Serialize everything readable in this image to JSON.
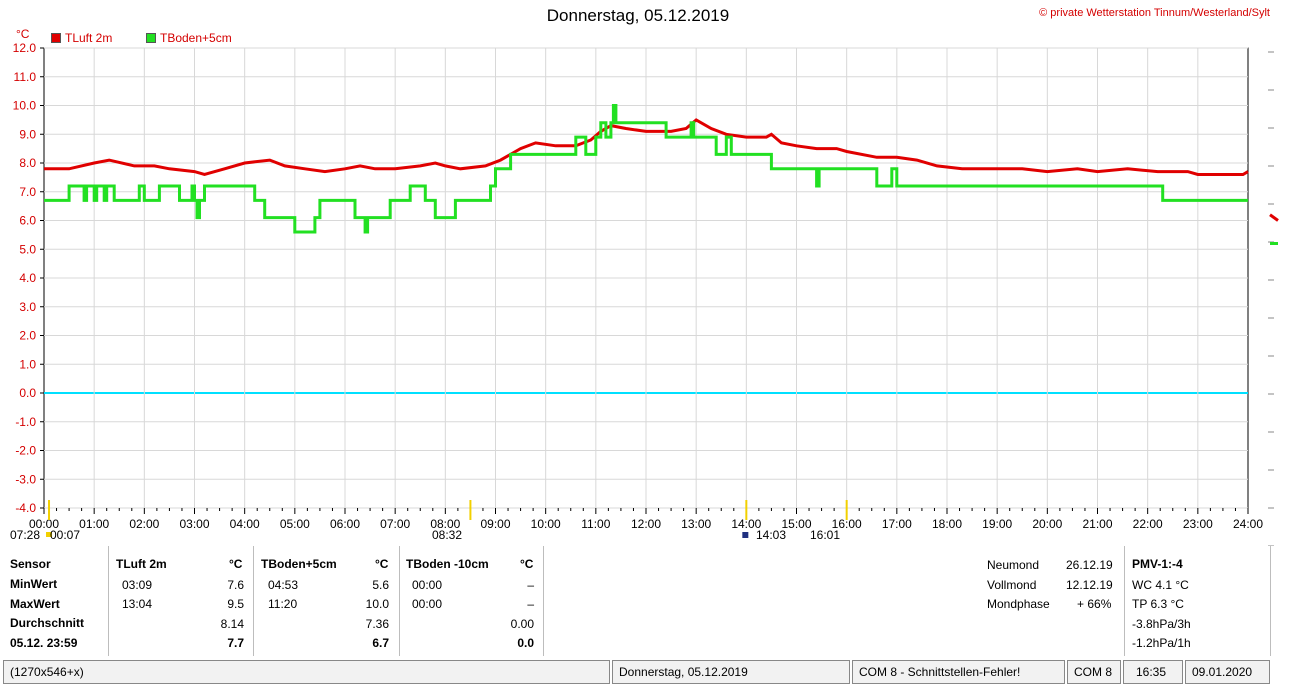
{
  "window": {
    "title": "Donnerstag, 05.12.2019",
    "credit": "© private Wetterstation Tinnum/Westerland/Sylt"
  },
  "chart_data": {
    "type": "line",
    "unit_label": "°C",
    "ylim": [
      -4.0,
      12.0
    ],
    "y_ticks": [
      "12.0",
      "11.0",
      "10.0",
      "9.0",
      "8.0",
      "7.0",
      "6.0",
      "5.0",
      "4.0",
      "3.0",
      "2.0",
      "1.0",
      "0.0",
      "-1.0",
      "-2.0",
      "-3.0",
      "-4.0"
    ],
    "x_ticks": [
      "00:00",
      "01:00",
      "02:00",
      "03:00",
      "04:00",
      "05:00",
      "06:00",
      "07:00",
      "08:00",
      "09:00",
      "10:00",
      "11:00",
      "12:00",
      "13:00",
      "14:00",
      "15:00",
      "16:00",
      "17:00",
      "18:00",
      "19:00",
      "20:00",
      "21:00",
      "22:00",
      "23:00",
      "24:00"
    ],
    "xlim_hours": [
      0,
      24
    ],
    "grid": true,
    "zero_line_color": "#00e0ff",
    "series": [
      {
        "name": "TLuft 2m",
        "color": "#e00000",
        "points": [
          [
            0,
            7.8
          ],
          [
            0.5,
            7.8
          ],
          [
            1.0,
            8.0
          ],
          [
            1.3,
            8.1
          ],
          [
            1.8,
            7.9
          ],
          [
            2.2,
            7.9
          ],
          [
            2.5,
            7.8
          ],
          [
            3.0,
            7.7
          ],
          [
            3.2,
            7.6
          ],
          [
            3.6,
            7.8
          ],
          [
            4.0,
            8.0
          ],
          [
            4.5,
            8.1
          ],
          [
            4.8,
            7.9
          ],
          [
            5.2,
            7.8
          ],
          [
            5.6,
            7.7
          ],
          [
            6.0,
            7.8
          ],
          [
            6.3,
            7.9
          ],
          [
            6.6,
            7.8
          ],
          [
            7.0,
            7.8
          ],
          [
            7.5,
            7.9
          ],
          [
            7.8,
            8.0
          ],
          [
            8.0,
            7.9
          ],
          [
            8.3,
            7.8
          ],
          [
            8.8,
            7.9
          ],
          [
            9.1,
            8.1
          ],
          [
            9.5,
            8.5
          ],
          [
            9.8,
            8.7
          ],
          [
            10.2,
            8.6
          ],
          [
            10.6,
            8.6
          ],
          [
            10.9,
            8.8
          ],
          [
            11.1,
            9.1
          ],
          [
            11.3,
            9.3
          ],
          [
            11.6,
            9.2
          ],
          [
            12.0,
            9.1
          ],
          [
            12.5,
            9.1
          ],
          [
            12.8,
            9.2
          ],
          [
            13.0,
            9.5
          ],
          [
            13.3,
            9.2
          ],
          [
            13.6,
            9.0
          ],
          [
            14.0,
            8.9
          ],
          [
            14.4,
            8.9
          ],
          [
            14.5,
            9.0
          ],
          [
            14.7,
            8.7
          ],
          [
            15.0,
            8.6
          ],
          [
            15.4,
            8.5
          ],
          [
            15.8,
            8.5
          ],
          [
            16.0,
            8.4
          ],
          [
            16.6,
            8.2
          ],
          [
            17.0,
            8.2
          ],
          [
            17.4,
            8.1
          ],
          [
            17.8,
            7.9
          ],
          [
            18.3,
            7.8
          ],
          [
            18.8,
            7.8
          ],
          [
            19.5,
            7.8
          ],
          [
            20.0,
            7.7
          ],
          [
            20.6,
            7.8
          ],
          [
            21.0,
            7.7
          ],
          [
            21.6,
            7.8
          ],
          [
            22.2,
            7.7
          ],
          [
            22.8,
            7.7
          ],
          [
            23.0,
            7.6
          ],
          [
            23.9,
            7.6
          ],
          [
            24.0,
            7.7
          ]
        ]
      },
      {
        "name": "TBoden+5cm",
        "color": "#22e022",
        "points": [
          [
            0,
            6.7
          ],
          [
            0.5,
            6.7
          ],
          [
            0.5,
            7.2
          ],
          [
            0.8,
            7.2
          ],
          [
            0.8,
            6.7
          ],
          [
            0.85,
            6.7
          ],
          [
            0.85,
            7.2
          ],
          [
            1.0,
            7.2
          ],
          [
            1.0,
            6.7
          ],
          [
            1.05,
            6.7
          ],
          [
            1.05,
            7.2
          ],
          [
            1.2,
            7.2
          ],
          [
            1.2,
            6.7
          ],
          [
            1.25,
            6.7
          ],
          [
            1.25,
            7.2
          ],
          [
            1.4,
            7.2
          ],
          [
            1.4,
            6.7
          ],
          [
            1.9,
            6.7
          ],
          [
            1.9,
            7.2
          ],
          [
            2.0,
            7.2
          ],
          [
            2.0,
            6.7
          ],
          [
            2.3,
            6.7
          ],
          [
            2.3,
            7.2
          ],
          [
            2.7,
            7.2
          ],
          [
            2.7,
            6.7
          ],
          [
            2.95,
            6.7
          ],
          [
            2.95,
            7.2
          ],
          [
            3.0,
            7.2
          ],
          [
            3.0,
            6.7
          ],
          [
            3.05,
            6.7
          ],
          [
            3.05,
            6.1
          ],
          [
            3.1,
            6.1
          ],
          [
            3.1,
            6.7
          ],
          [
            3.2,
            6.7
          ],
          [
            3.2,
            7.2
          ],
          [
            4.2,
            7.2
          ],
          [
            4.2,
            6.7
          ],
          [
            4.4,
            6.7
          ],
          [
            4.4,
            6.1
          ],
          [
            5.0,
            6.1
          ],
          [
            5.0,
            5.6
          ],
          [
            5.4,
            5.6
          ],
          [
            5.4,
            6.1
          ],
          [
            5.5,
            6.1
          ],
          [
            5.5,
            6.7
          ],
          [
            6.2,
            6.7
          ],
          [
            6.2,
            6.1
          ],
          [
            6.4,
            6.1
          ],
          [
            6.4,
            5.6
          ],
          [
            6.45,
            5.6
          ],
          [
            6.45,
            6.1
          ],
          [
            6.9,
            6.1
          ],
          [
            6.9,
            6.7
          ],
          [
            7.3,
            6.7
          ],
          [
            7.3,
            7.2
          ],
          [
            7.6,
            7.2
          ],
          [
            7.6,
            6.7
          ],
          [
            7.8,
            6.7
          ],
          [
            7.8,
            6.1
          ],
          [
            8.2,
            6.1
          ],
          [
            8.2,
            6.7
          ],
          [
            8.9,
            6.7
          ],
          [
            8.9,
            7.2
          ],
          [
            9.0,
            7.2
          ],
          [
            9.0,
            7.8
          ],
          [
            9.3,
            7.8
          ],
          [
            9.3,
            8.3
          ],
          [
            10.6,
            8.3
          ],
          [
            10.6,
            8.9
          ],
          [
            10.8,
            8.9
          ],
          [
            10.8,
            8.3
          ],
          [
            11.0,
            8.3
          ],
          [
            11.0,
            8.9
          ],
          [
            11.1,
            8.9
          ],
          [
            11.1,
            9.4
          ],
          [
            11.2,
            9.4
          ],
          [
            11.2,
            8.9
          ],
          [
            11.3,
            8.9
          ],
          [
            11.3,
            9.4
          ],
          [
            11.35,
            9.4
          ],
          [
            11.35,
            10.0
          ],
          [
            11.4,
            10.0
          ],
          [
            11.4,
            9.4
          ],
          [
            12.4,
            9.4
          ],
          [
            12.4,
            8.9
          ],
          [
            12.9,
            8.9
          ],
          [
            12.9,
            9.4
          ],
          [
            12.95,
            9.4
          ],
          [
            12.95,
            8.9
          ],
          [
            13.4,
            8.9
          ],
          [
            13.4,
            8.3
          ],
          [
            13.6,
            8.3
          ],
          [
            13.6,
            8.9
          ],
          [
            13.7,
            8.9
          ],
          [
            13.7,
            8.3
          ],
          [
            14.5,
            8.3
          ],
          [
            14.5,
            7.8
          ],
          [
            15.4,
            7.8
          ],
          [
            15.4,
            7.2
          ],
          [
            15.45,
            7.2
          ],
          [
            15.45,
            7.8
          ],
          [
            16.6,
            7.8
          ],
          [
            16.6,
            7.2
          ],
          [
            16.9,
            7.2
          ],
          [
            16.9,
            7.8
          ],
          [
            17.0,
            7.8
          ],
          [
            17.0,
            7.2
          ],
          [
            22.3,
            7.2
          ],
          [
            22.3,
            6.7
          ],
          [
            24.0,
            6.7
          ]
        ]
      }
    ]
  },
  "markers": {
    "left_times": [
      "07:28",
      "00:07"
    ],
    "mid_time": "08:32",
    "right_times": [
      "14:03",
      "16:01"
    ]
  },
  "stats": {
    "row_labels": [
      "Sensor",
      "MinWert",
      "MaxWert",
      "Durchschnitt",
      "05.12. 23:59"
    ],
    "columns": [
      {
        "name": "TLuft 2m",
        "unit": "°C",
        "min_time": "03:09",
        "min": "7.6",
        "max_time": "13:04",
        "max": "9.5",
        "avg": "8.14",
        "last": "7.7"
      },
      {
        "name": "TBoden+5cm",
        "unit": "°C",
        "min_time": "04:53",
        "min": "5.6",
        "max_time": "11:20",
        "max": "10.0",
        "avg": "7.36",
        "last": "6.7"
      },
      {
        "name": "TBoden -10cm",
        "unit": "°C",
        "min_time": "00:00",
        "min": "–",
        "max_time": "00:00",
        "max": "–",
        "avg": "0.00",
        "last": "0.0"
      }
    ]
  },
  "moon": {
    "rows": [
      {
        "label": "Neumond",
        "value": "26.12.19"
      },
      {
        "label": "Vollmond",
        "value": "12.12.19"
      },
      {
        "label": "Mondphase",
        "value": "+ 66%"
      }
    ]
  },
  "pmv": {
    "title": "PMV-1:-4",
    "lines": [
      "WC 4.1 °C",
      "TP 6.3 °C",
      "-3.8hPa/3h",
      "-1.2hPa/1h"
    ]
  },
  "statusbar": {
    "size": "(1270x546+x)",
    "date": "Donnerstag, 05.12.2019",
    "com_error": "COM 8 - Schnittstellen-Fehler!",
    "port": "COM 8",
    "time": "16:35",
    "today": "09.01.2020"
  }
}
